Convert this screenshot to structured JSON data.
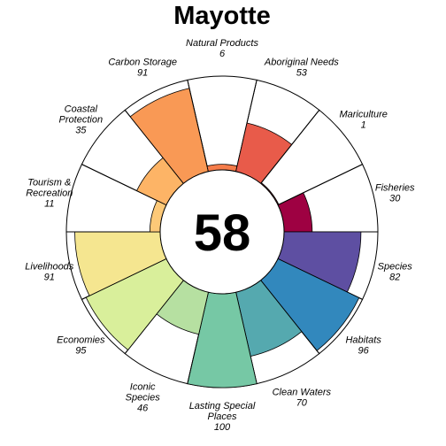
{
  "chart_data": {
    "type": "flower",
    "title": "Mayotte",
    "center_value": "58",
    "score_max": 100,
    "petals": [
      {
        "name": [
          "Fisheries"
        ],
        "value": 30,
        "value_label": "30",
        "color": "#9E0142"
      },
      {
        "name": [
          "Species"
        ],
        "value": 82,
        "value_label": "82",
        "color": "#5E4FA2"
      },
      {
        "name": [
          "Habitats"
        ],
        "value": 96,
        "value_label": "96",
        "color": "#3288BD"
      },
      {
        "name": [
          "Clean Waters"
        ],
        "value": 70,
        "value_label": "70",
        "color": "#55A9AF"
      },
      {
        "name": [
          "Lasting Special",
          "Places"
        ],
        "value": 100,
        "value_label": "100",
        "color": "#76C8A5"
      },
      {
        "name": [
          "Iconic",
          "Species"
        ],
        "value": 46,
        "value_label": "46",
        "color": "#B6E0A1"
      },
      {
        "name": [
          "Economies"
        ],
        "value": 95,
        "value_label": "95",
        "color": "#D9EF9B"
      },
      {
        "name": [
          "Livelihoods"
        ],
        "value": 91,
        "value_label": "91",
        "color": "#F5E690"
      },
      {
        "name": [
          "Tourism &",
          "Recreation"
        ],
        "value": 11,
        "value_label": "11",
        "color": "#FDC978"
      },
      {
        "name": [
          "Coastal",
          "Protection"
        ],
        "value": 35,
        "value_label": "35",
        "color": "#FDB466"
      },
      {
        "name": [
          "Carbon Storage"
        ],
        "value": 91,
        "value_label": "91",
        "color": "#F99955"
      },
      {
        "name": [
          "Natural Products"
        ],
        "value": 6,
        "value_label": "6",
        "color": "#F57C4A"
      },
      {
        "name": [
          "Aboriginal Needs"
        ],
        "value": 53,
        "value_label": "53",
        "color": "#E85B4A"
      },
      {
        "name": [
          "Mariculture"
        ],
        "value": 1,
        "value_label": "1",
        "color": "#D4404C"
      }
    ]
  }
}
